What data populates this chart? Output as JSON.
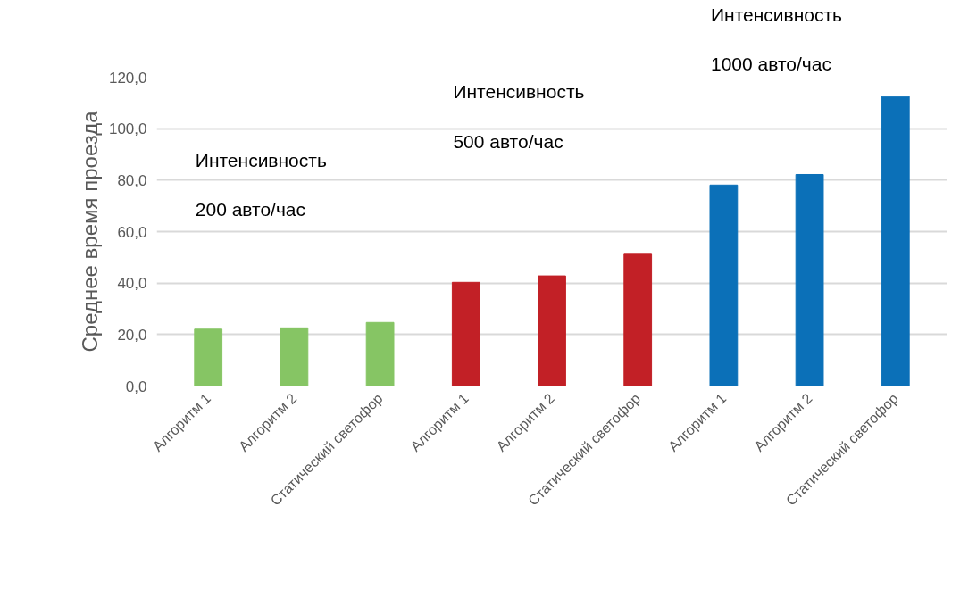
{
  "chart_data": {
    "type": "bar",
    "ylabel": "Среднее время проезда",
    "categories": [
      "Алгоритм 1",
      "Алгоритм 2",
      "Статический светофор",
      "Алгоритм 1",
      "Алгоритм 2",
      "Статический светофор",
      "Алгоритм 1",
      "Алгоритм 2",
      "Статический светофор"
    ],
    "values": [
      22.1,
      22.6,
      24.7,
      40.3,
      42.8,
      51.2,
      78.1,
      82.2,
      112.5
    ],
    "colors": [
      "#86c564",
      "#86c564",
      "#86c564",
      "#c22026",
      "#c22026",
      "#c22026",
      "#0b70b8",
      "#0b70b8",
      "#0b70b8"
    ],
    "ylim": [
      0,
      120
    ],
    "yticks": [
      {
        "value": 0,
        "label": "0,0"
      },
      {
        "value": 20,
        "label": "20,0"
      },
      {
        "value": 40,
        "label": "40,0"
      },
      {
        "value": 60,
        "label": "60,0"
      },
      {
        "value": 80,
        "label": "80,0"
      },
      {
        "value": 100,
        "label": "100,0"
      },
      {
        "value": 120,
        "label": "120,0"
      }
    ],
    "grid": "y",
    "annotations": [
      "Интенсивность\n200 авто/час",
      "Интенсивность\n500 авто/час",
      "Интенсивность\n1000 авто/час"
    ]
  }
}
